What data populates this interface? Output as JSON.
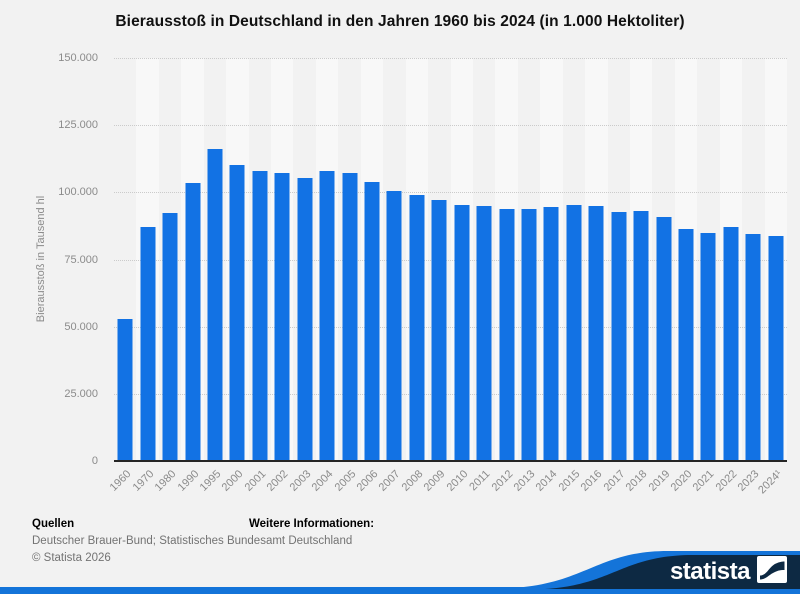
{
  "chart_data": {
    "type": "bar",
    "title": "Bierausstoß in Deutschland in den Jahren 1960 bis 2024 (in 1.000 Hektoliter)",
    "ylabel": "Bierausstoß in Tausend hl",
    "xlabel": "",
    "ylim": [
      0,
      150000
    ],
    "grid": "horizontal dotted lines every 25.000",
    "legend": "none",
    "bar_color": "#1272e4",
    "categories": [
      "1960",
      "1970",
      "1980",
      "1990",
      "1995",
      "2000",
      "2001",
      "2002",
      "2003",
      "2004",
      "2005",
      "2006",
      "2007",
      "2008",
      "2009",
      "2010",
      "2011",
      "2012",
      "2013",
      "2014",
      "2015",
      "2016",
      "2017",
      "2018",
      "2019",
      "2020",
      "2021",
      "2022",
      "2023",
      "2024¹"
    ],
    "values": [
      53000,
      87000,
      92300,
      103500,
      116300,
      110200,
      108000,
      107200,
      105200,
      108100,
      107100,
      103800,
      100400,
      99100,
      97100,
      95200,
      95100,
      94000,
      93700,
      94600,
      95300,
      95000,
      92700,
      93100,
      91000,
      86400,
      84700,
      87300,
      84500,
      83600
    ],
    "yticks": [
      {
        "label": "150.000",
        "value": 150000
      },
      {
        "label": "125.000",
        "value": 125000
      },
      {
        "label": "100.000",
        "value": 100000
      },
      {
        "label": "75.000",
        "value": 75000
      },
      {
        "label": "50.000",
        "value": 50000
      },
      {
        "label": "25.000",
        "value": 25000
      },
      {
        "label": "0",
        "value": 0
      }
    ]
  },
  "footer": {
    "sources_heading": "Quellen",
    "sources": "Deutscher Brauer-Bund; Statistisches Bundesamt Deutschland",
    "copyright": "© Statista 2026",
    "more_info_heading": "Weitere Informationen:"
  },
  "branding": {
    "logo_text": "statista",
    "navy": "#0d2943",
    "blue": "#1474d9"
  }
}
